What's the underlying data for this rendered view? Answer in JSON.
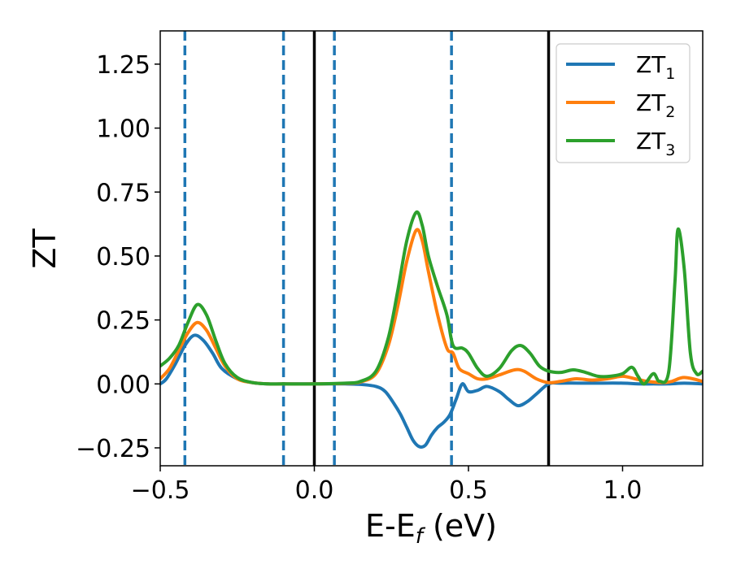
{
  "chart_data": {
    "type": "line",
    "title": "",
    "xlabel": "E-E",
    "xlabel_sub": "f",
    "xlabel_unit": " (eV)",
    "ylabel": "ZT",
    "xlim": [
      -0.5,
      1.26
    ],
    "ylim": [
      -0.32,
      1.38
    ],
    "xticks": [
      -0.5,
      0.0,
      0.5,
      1.0
    ],
    "xtick_labels": [
      "−0.5",
      "0.0",
      "0.5",
      "1.0"
    ],
    "yticks": [
      -0.25,
      0.0,
      0.25,
      0.5,
      0.75,
      1.0,
      1.25
    ],
    "ytick_labels": [
      "−0.25",
      "0.00",
      "0.25",
      "0.50",
      "0.75",
      "1.00",
      "1.25"
    ],
    "grid": false,
    "legend_position": "top-right",
    "dashed_lines": {
      "x": [
        -0.42,
        -0.1,
        0.065,
        0.445
      ],
      "color": "#1f77b4"
    },
    "solid_lines": {
      "x": [
        0.0,
        0.76
      ],
      "color": "#000000"
    },
    "series": [
      {
        "name": "ZT",
        "subscript": "1",
        "color": "#1f77b4",
        "points": [
          [
            -0.5,
            0.0
          ],
          [
            -0.48,
            0.02
          ],
          [
            -0.45,
            0.08
          ],
          [
            -0.42,
            0.15
          ],
          [
            -0.39,
            0.19
          ],
          [
            -0.36,
            0.17
          ],
          [
            -0.33,
            0.12
          ],
          [
            -0.3,
            0.06
          ],
          [
            -0.25,
            0.02
          ],
          [
            -0.2,
            0.005
          ],
          [
            -0.15,
            0.0
          ],
          [
            -0.1,
            0.0
          ],
          [
            0.0,
            0.0
          ],
          [
            0.1,
            0.0
          ],
          [
            0.15,
            -0.002
          ],
          [
            0.2,
            -0.01
          ],
          [
            0.23,
            -0.03
          ],
          [
            0.26,
            -0.08
          ],
          [
            0.28,
            -0.12
          ],
          [
            0.3,
            -0.17
          ],
          [
            0.32,
            -0.22
          ],
          [
            0.34,
            -0.245
          ],
          [
            0.36,
            -0.24
          ],
          [
            0.38,
            -0.2
          ],
          [
            0.4,
            -0.17
          ],
          [
            0.42,
            -0.15
          ],
          [
            0.44,
            -0.12
          ],
          [
            0.46,
            -0.06
          ],
          [
            0.48,
            0.0
          ],
          [
            0.5,
            -0.03
          ],
          [
            0.53,
            -0.025
          ],
          [
            0.56,
            -0.01
          ],
          [
            0.6,
            -0.03
          ],
          [
            0.63,
            -0.06
          ],
          [
            0.66,
            -0.085
          ],
          [
            0.69,
            -0.07
          ],
          [
            0.72,
            -0.04
          ],
          [
            0.76,
            0.0
          ],
          [
            0.8,
            0.003
          ],
          [
            0.9,
            0.003
          ],
          [
            1.0,
            0.003
          ],
          [
            1.05,
            0.0
          ],
          [
            1.1,
            0.0
          ],
          [
            1.15,
            0.0
          ],
          [
            1.2,
            0.003
          ],
          [
            1.26,
            0.0
          ]
        ]
      },
      {
        "name": "ZT",
        "subscript": "2",
        "color": "#ff7f0e",
        "points": [
          [
            -0.5,
            0.02
          ],
          [
            -0.47,
            0.06
          ],
          [
            -0.44,
            0.13
          ],
          [
            -0.41,
            0.2
          ],
          [
            -0.38,
            0.24
          ],
          [
            -0.35,
            0.21
          ],
          [
            -0.32,
            0.14
          ],
          [
            -0.29,
            0.07
          ],
          [
            -0.25,
            0.02
          ],
          [
            -0.2,
            0.005
          ],
          [
            -0.15,
            0.0
          ],
          [
            -0.1,
            0.0
          ],
          [
            0.0,
            0.0
          ],
          [
            0.1,
            0.002
          ],
          [
            0.15,
            0.008
          ],
          [
            0.2,
            0.04
          ],
          [
            0.24,
            0.15
          ],
          [
            0.27,
            0.3
          ],
          [
            0.3,
            0.48
          ],
          [
            0.33,
            0.6
          ],
          [
            0.35,
            0.56
          ],
          [
            0.37,
            0.44
          ],
          [
            0.4,
            0.27
          ],
          [
            0.43,
            0.14
          ],
          [
            0.45,
            0.12
          ],
          [
            0.47,
            0.06
          ],
          [
            0.5,
            0.04
          ],
          [
            0.53,
            0.02
          ],
          [
            0.56,
            0.02
          ],
          [
            0.6,
            0.035
          ],
          [
            0.65,
            0.055
          ],
          [
            0.68,
            0.05
          ],
          [
            0.72,
            0.02
          ],
          [
            0.76,
            0.005
          ],
          [
            0.8,
            0.01
          ],
          [
            0.85,
            0.02
          ],
          [
            0.9,
            0.015
          ],
          [
            0.95,
            0.02
          ],
          [
            1.0,
            0.03
          ],
          [
            1.04,
            0.02
          ],
          [
            1.08,
            0.01
          ],
          [
            1.13,
            0.005
          ],
          [
            1.16,
            0.01
          ],
          [
            1.2,
            0.025
          ],
          [
            1.26,
            0.01
          ]
        ]
      },
      {
        "name": "ZT",
        "subscript": "3",
        "color": "#2ca02c",
        "points": [
          [
            -0.5,
            0.07
          ],
          [
            -0.47,
            0.1
          ],
          [
            -0.44,
            0.15
          ],
          [
            -0.41,
            0.24
          ],
          [
            -0.38,
            0.31
          ],
          [
            -0.35,
            0.27
          ],
          [
            -0.32,
            0.17
          ],
          [
            -0.29,
            0.08
          ],
          [
            -0.25,
            0.025
          ],
          [
            -0.2,
            0.005
          ],
          [
            -0.15,
            0.0
          ],
          [
            -0.1,
            0.0
          ],
          [
            0.0,
            0.0
          ],
          [
            0.1,
            0.003
          ],
          [
            0.15,
            0.01
          ],
          [
            0.2,
            0.05
          ],
          [
            0.24,
            0.18
          ],
          [
            0.27,
            0.36
          ],
          [
            0.3,
            0.56
          ],
          [
            0.33,
            0.67
          ],
          [
            0.35,
            0.62
          ],
          [
            0.37,
            0.5
          ],
          [
            0.4,
            0.38
          ],
          [
            0.43,
            0.27
          ],
          [
            0.45,
            0.15
          ],
          [
            0.48,
            0.14
          ],
          [
            0.5,
            0.12
          ],
          [
            0.53,
            0.06
          ],
          [
            0.56,
            0.03
          ],
          [
            0.6,
            0.06
          ],
          [
            0.64,
            0.13
          ],
          [
            0.67,
            0.15
          ],
          [
            0.7,
            0.12
          ],
          [
            0.73,
            0.07
          ],
          [
            0.76,
            0.05
          ],
          [
            0.8,
            0.045
          ],
          [
            0.84,
            0.055
          ],
          [
            0.88,
            0.045
          ],
          [
            0.92,
            0.03
          ],
          [
            0.96,
            0.03
          ],
          [
            1.0,
            0.04
          ],
          [
            1.03,
            0.065
          ],
          [
            1.05,
            0.03
          ],
          [
            1.07,
            0.0
          ],
          [
            1.1,
            0.04
          ],
          [
            1.12,
            0.01
          ],
          [
            1.15,
            0.05
          ],
          [
            1.17,
            0.4
          ],
          [
            1.18,
            0.605
          ],
          [
            1.2,
            0.45
          ],
          [
            1.22,
            0.12
          ],
          [
            1.24,
            0.04
          ],
          [
            1.26,
            0.05
          ]
        ]
      }
    ]
  }
}
